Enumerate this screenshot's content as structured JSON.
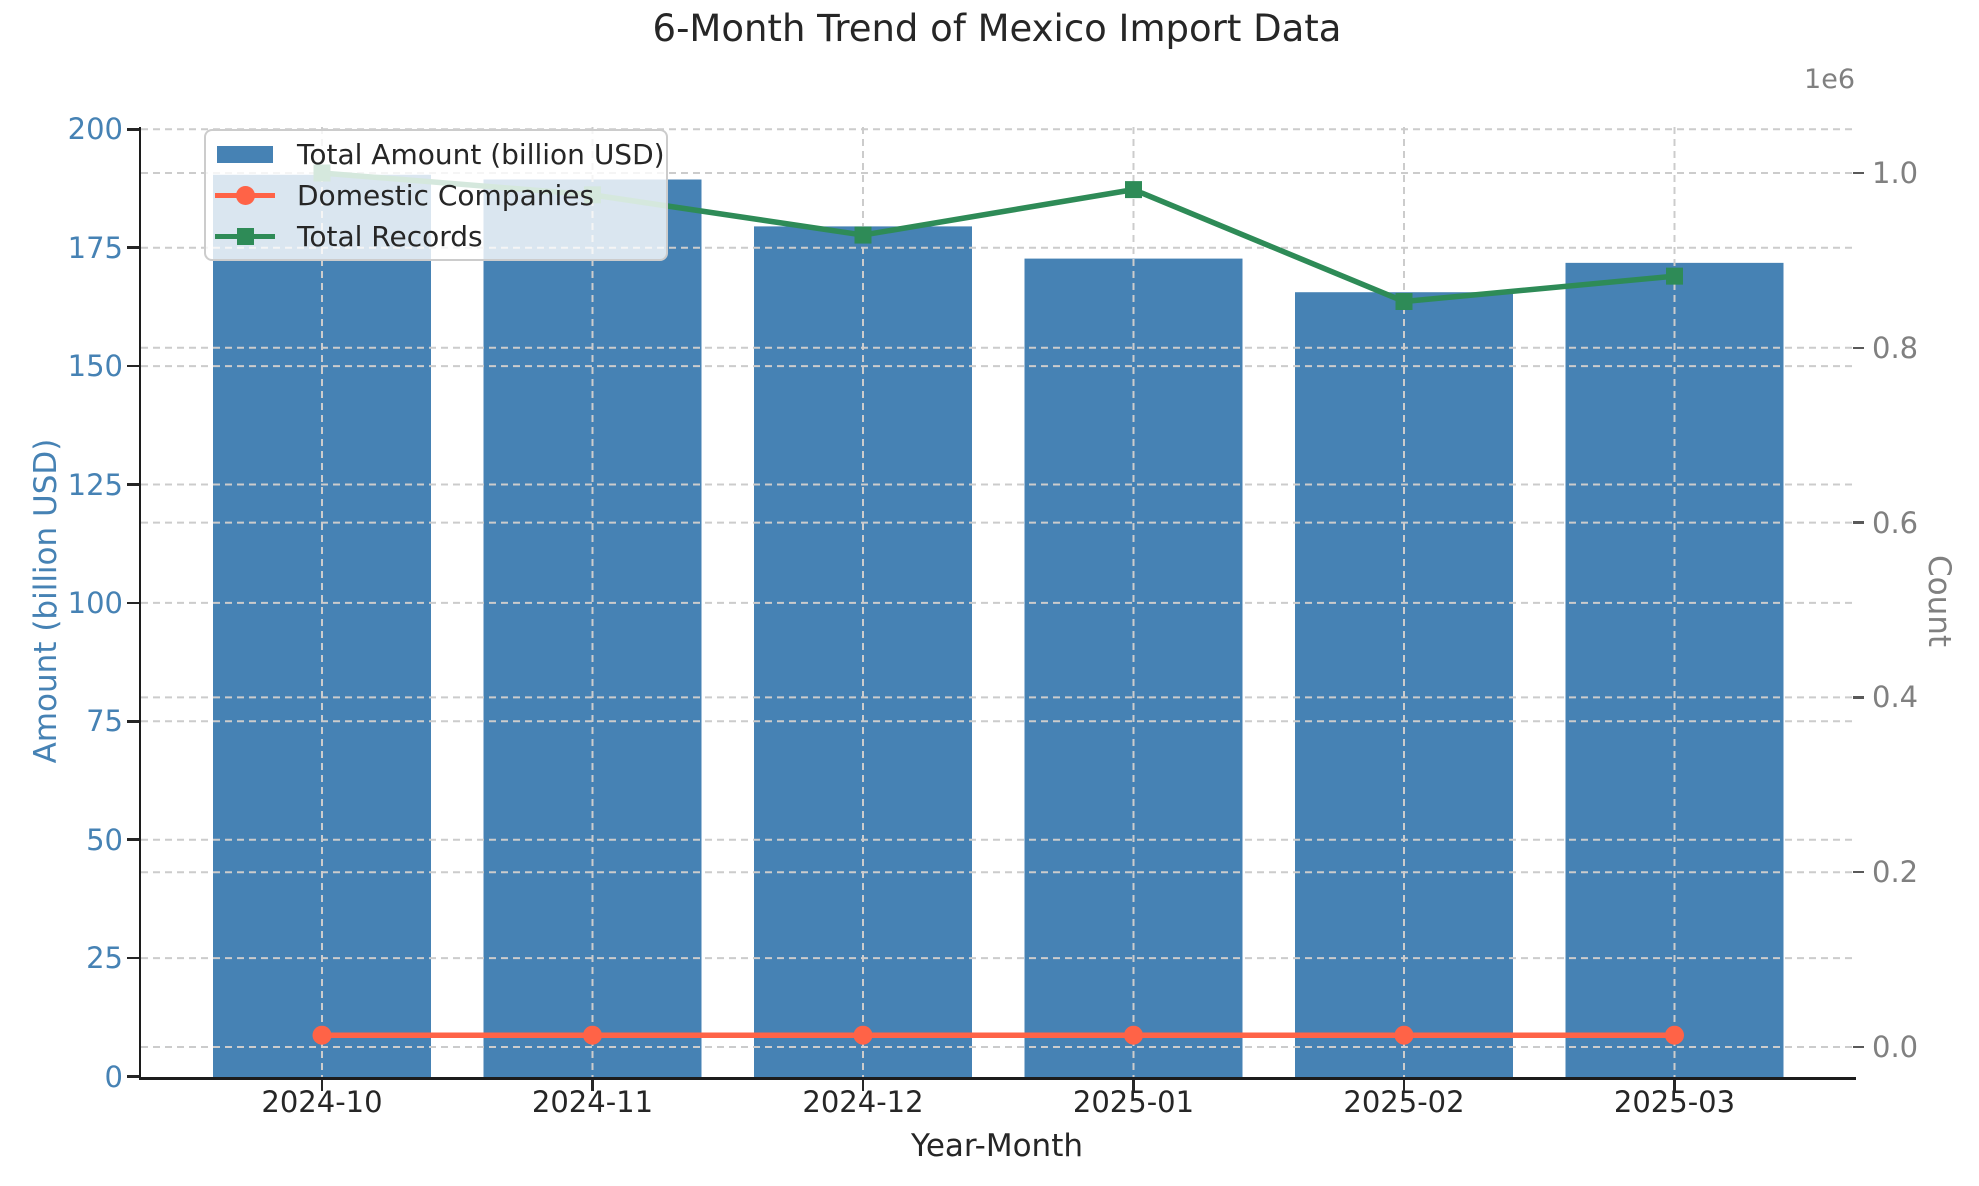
{
  "title": "6-Month Trend of Mexico Import Data",
  "axes": {
    "x_label": "Year-Month",
    "y_left_label": "Amount (billion USD)",
    "y_right_label": "Count",
    "y_right_offset_label": "1e6"
  },
  "legend": {
    "items": [
      {
        "label": "Total Amount (billion USD)",
        "type": "bar",
        "color": "#4682B4"
      },
      {
        "label": "Domestic Companies",
        "type": "line-circle",
        "color": "#FF6347"
      },
      {
        "label": "Total Records",
        "type": "line-square",
        "color": "#2E8B57"
      }
    ]
  },
  "colors": {
    "bar": "#4682B4",
    "domestic_line": "#FF6347",
    "records_line": "#2E8B57",
    "grid": "#cccccc",
    "left_axis_text": "#4682B4",
    "right_axis_text": "#808080",
    "text": "#262626"
  },
  "chart_data": {
    "type": "bar",
    "title": "6-Month Trend of Mexico Import Data",
    "xlabel": "Year-Month",
    "ylabel_left": "Amount (billion USD)",
    "ylabel_right": "Count",
    "categories": [
      "2024-10",
      "2024-11",
      "2024-12",
      "2025-01",
      "2025-02",
      "2025-03"
    ],
    "series": [
      {
        "name": "Total Amount (billion USD)",
        "type": "bar",
        "axis": "left",
        "color": "#4682B4",
        "values": [
          190.4,
          189.4,
          179.5,
          172.7,
          165.6,
          171.8
        ]
      },
      {
        "name": "Domestic Companies",
        "type": "line",
        "marker": "circle",
        "axis": "right",
        "color": "#FF6347",
        "values": [
          13500,
          13500,
          13500,
          13500,
          13500,
          13500
        ]
      },
      {
        "name": "Total Records",
        "type": "line",
        "marker": "square",
        "axis": "right",
        "color": "#2E8B57",
        "values": [
          1000000,
          975000,
          929000,
          981000,
          853000,
          882000
        ]
      }
    ],
    "left_axis": {
      "min": 0,
      "max": 200,
      "ticks": [
        0,
        25,
        50,
        75,
        100,
        125,
        150,
        175,
        200
      ]
    },
    "right_axis": {
      "min": 0,
      "max": 1000000,
      "ticks": [
        0,
        200000,
        400000,
        600000,
        800000,
        1000000
      ],
      "tick_labels": [
        "0.0",
        "0.2",
        "0.4",
        "0.6",
        "0.8",
        "1.0"
      ],
      "offset_label": "1e6"
    },
    "grid": {
      "show": true,
      "style": "dashed",
      "color": "#cccccc"
    },
    "legend_position": "upper left"
  }
}
